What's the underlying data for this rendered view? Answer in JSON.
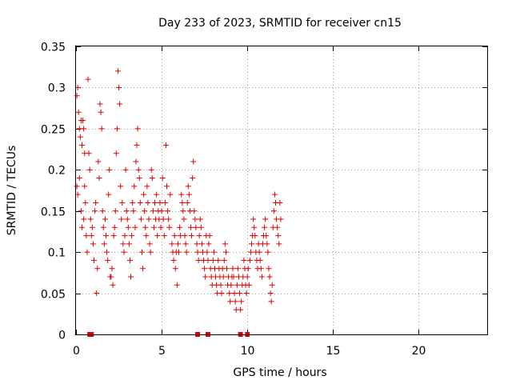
{
  "chart_data": {
    "type": "scatter",
    "title": "Day 233 of 2023, SRMTID for receiver cn15",
    "xlabel": "GPS time / hours",
    "ylabel": "SRMTID / TECUs",
    "xlim": [
      0,
      24
    ],
    "ylim": [
      0,
      0.35
    ],
    "xticks": [
      0,
      5,
      10,
      15,
      20
    ],
    "xtick_labels": [
      "0",
      "5",
      "10",
      "15",
      "20"
    ],
    "yticks": [
      0,
      0.05,
      0.1,
      0.15,
      0.2,
      0.25,
      0.3,
      0.35
    ],
    "ytick_labels": [
      "0",
      "0.05",
      "0.1",
      "0.15",
      "0.2",
      "0.25",
      "0.3",
      "0.35"
    ],
    "grid": true,
    "marker": "plus",
    "color": "#e00000",
    "series": [
      {
        "name": "SRMTID",
        "points": [
          [
            0.05,
            0.29
          ],
          [
            0.1,
            0.3
          ],
          [
            0.15,
            0.27
          ],
          [
            0.2,
            0.25
          ],
          [
            0.25,
            0.24
          ],
          [
            0.3,
            0.26
          ],
          [
            0.35,
            0.23
          ],
          [
            0.4,
            0.26
          ],
          [
            0.45,
            0.25
          ],
          [
            0.5,
            0.22
          ],
          [
            0.05,
            0.18
          ],
          [
            0.1,
            0.17
          ],
          [
            0.2,
            0.19
          ],
          [
            0.3,
            0.15
          ],
          [
            0.35,
            0.13
          ],
          [
            0.45,
            0.14
          ],
          [
            0.5,
            0.18
          ],
          [
            0.55,
            0.16
          ],
          [
            0.6,
            0.12
          ],
          [
            0.65,
            0.1
          ],
          [
            0.7,
            0.31
          ],
          [
            0.75,
            0.22
          ],
          [
            0.8,
            0.2
          ],
          [
            0.85,
            0.14
          ],
          [
            0.9,
            0.12
          ],
          [
            0.95,
            0.13
          ],
          [
            1.0,
            0.11
          ],
          [
            1.05,
            0.09
          ],
          [
            1.1,
            0.15
          ],
          [
            1.15,
            0.16
          ],
          [
            1.2,
            0.05
          ],
          [
            1.25,
            0.08
          ],
          [
            1.3,
            0.21
          ],
          [
            1.35,
            0.19
          ],
          [
            1.4,
            0.28
          ],
          [
            1.45,
            0.27
          ],
          [
            1.5,
            0.25
          ],
          [
            1.55,
            0.15
          ],
          [
            1.6,
            0.13
          ],
          [
            1.65,
            0.11
          ],
          [
            1.7,
            0.14
          ],
          [
            1.75,
            0.12
          ],
          [
            1.8,
            0.1
          ],
          [
            1.85,
            0.09
          ],
          [
            1.9,
            0.17
          ],
          [
            1.95,
            0.2
          ],
          [
            2.0,
            0.07
          ],
          [
            2.05,
            0.07
          ],
          [
            2.1,
            0.08
          ],
          [
            2.15,
            0.06
          ],
          [
            2.2,
            0.12
          ],
          [
            2.25,
            0.13
          ],
          [
            2.3,
            0.15
          ],
          [
            2.35,
            0.22
          ],
          [
            2.4,
            0.25
          ],
          [
            2.45,
            0.32
          ],
          [
            2.5,
            0.3
          ],
          [
            2.55,
            0.28
          ],
          [
            2.6,
            0.18
          ],
          [
            2.65,
            0.14
          ],
          [
            2.7,
            0.16
          ],
          [
            2.75,
            0.11
          ],
          [
            2.8,
            0.1
          ],
          [
            2.85,
            0.12
          ],
          [
            2.9,
            0.2
          ],
          [
            2.95,
            0.15
          ],
          [
            3.0,
            0.14
          ],
          [
            3.05,
            0.13
          ],
          [
            3.1,
            0.11
          ],
          [
            3.15,
            0.09
          ],
          [
            3.2,
            0.07
          ],
          [
            3.25,
            0.12
          ],
          [
            3.3,
            0.16
          ],
          [
            3.35,
            0.15
          ],
          [
            3.4,
            0.18
          ],
          [
            3.45,
            0.13
          ],
          [
            3.5,
            0.21
          ],
          [
            3.55,
            0.23
          ],
          [
            3.6,
            0.25
          ],
          [
            3.65,
            0.2
          ],
          [
            3.7,
            0.19
          ],
          [
            3.75,
            0.16
          ],
          [
            3.8,
            0.14
          ],
          [
            3.85,
            0.1
          ],
          [
            3.9,
            0.08
          ],
          [
            3.95,
            0.17
          ],
          [
            4.0,
            0.15
          ],
          [
            4.05,
            0.13
          ],
          [
            4.1,
            0.12
          ],
          [
            4.15,
            0.18
          ],
          [
            4.2,
            0.16
          ],
          [
            4.25,
            0.14
          ],
          [
            4.3,
            0.11
          ],
          [
            4.35,
            0.1
          ],
          [
            4.4,
            0.2
          ],
          [
            4.45,
            0.19
          ],
          [
            4.5,
            0.15
          ],
          [
            4.55,
            0.13
          ],
          [
            4.6,
            0.16
          ],
          [
            4.65,
            0.14
          ],
          [
            4.7,
            0.17
          ],
          [
            4.75,
            0.12
          ],
          [
            4.8,
            0.15
          ],
          [
            4.85,
            0.14
          ],
          [
            4.9,
            0.16
          ],
          [
            4.95,
            0.13
          ],
          [
            5.0,
            0.15
          ],
          [
            5.05,
            0.19
          ],
          [
            5.1,
            0.14
          ],
          [
            5.15,
            0.12
          ],
          [
            5.2,
            0.16
          ],
          [
            5.25,
            0.23
          ],
          [
            5.3,
            0.18
          ],
          [
            5.35,
            0.15
          ],
          [
            5.4,
            0.14
          ],
          [
            5.45,
            0.13
          ],
          [
            5.5,
            0.17
          ],
          [
            5.6,
            0.11
          ],
          [
            5.65,
            0.1
          ],
          [
            5.7,
            0.09
          ],
          [
            5.75,
            0.12
          ],
          [
            5.8,
            0.08
          ],
          [
            5.85,
            0.1
          ],
          [
            5.9,
            0.06
          ],
          [
            5.95,
            0.11
          ],
          [
            6.0,
            0.1
          ],
          [
            6.05,
            0.13
          ],
          [
            6.1,
            0.12
          ],
          [
            6.15,
            0.17
          ],
          [
            6.2,
            0.16
          ],
          [
            6.25,
            0.15
          ],
          [
            6.3,
            0.14
          ],
          [
            6.35,
            0.12
          ],
          [
            6.4,
            0.11
          ],
          [
            6.45,
            0.1
          ],
          [
            6.5,
            0.16
          ],
          [
            6.55,
            0.18
          ],
          [
            6.6,
            0.17
          ],
          [
            6.65,
            0.15
          ],
          [
            6.7,
            0.13
          ],
          [
            6.75,
            0.12
          ],
          [
            6.8,
            0.19
          ],
          [
            6.85,
            0.21
          ],
          [
            6.9,
            0.15
          ],
          [
            6.95,
            0.14
          ],
          [
            7.0,
            0.13
          ],
          [
            7.05,
            0.11
          ],
          [
            7.1,
            0.1
          ],
          [
            7.15,
            0.09
          ],
          [
            7.2,
            0.12
          ],
          [
            7.25,
            0.14
          ],
          [
            7.3,
            0.13
          ],
          [
            7.35,
            0.11
          ],
          [
            7.4,
            0.1
          ],
          [
            7.45,
            0.09
          ],
          [
            7.5,
            0.08
          ],
          [
            7.55,
            0.07
          ],
          [
            7.6,
            0.12
          ],
          [
            7.65,
            0.1
          ],
          [
            7.7,
            0.09
          ],
          [
            7.75,
            0.11
          ],
          [
            7.8,
            0.12
          ],
          [
            7.85,
            0.08
          ],
          [
            7.9,
            0.07
          ],
          [
            7.95,
            0.06
          ],
          [
            8.0,
            0.09
          ],
          [
            8.05,
            0.1
          ],
          [
            8.1,
            0.08
          ],
          [
            8.15,
            0.07
          ],
          [
            8.2,
            0.06
          ],
          [
            8.25,
            0.05
          ],
          [
            8.3,
            0.09
          ],
          [
            8.35,
            0.08
          ],
          [
            8.4,
            0.07
          ],
          [
            8.45,
            0.06
          ],
          [
            8.5,
            0.05
          ],
          [
            8.55,
            0.08
          ],
          [
            8.6,
            0.07
          ],
          [
            8.65,
            0.09
          ],
          [
            8.7,
            0.11
          ],
          [
            8.75,
            0.1
          ],
          [
            8.8,
            0.08
          ],
          [
            8.85,
            0.06
          ],
          [
            8.9,
            0.07
          ],
          [
            8.95,
            0.05
          ],
          [
            9.0,
            0.04
          ],
          [
            9.05,
            0.06
          ],
          [
            9.1,
            0.07
          ],
          [
            9.15,
            0.08
          ],
          [
            9.2,
            0.07
          ],
          [
            9.25,
            0.05
          ],
          [
            9.3,
            0.04
          ],
          [
            9.35,
            0.03
          ],
          [
            9.4,
            0.06
          ],
          [
            9.45,
            0.08
          ],
          [
            9.5,
            0.07
          ],
          [
            9.55,
            0.05
          ],
          [
            9.6,
            0.03
          ],
          [
            9.65,
            0.04
          ],
          [
            9.7,
            0.06
          ],
          [
            9.75,
            0.07
          ],
          [
            9.8,
            0.09
          ],
          [
            9.85,
            0.08
          ],
          [
            9.9,
            0.06
          ],
          [
            9.95,
            0.05
          ],
          [
            10.0,
            0.07
          ],
          [
            10.05,
            0.08
          ],
          [
            10.1,
            0.06
          ],
          [
            10.15,
            0.09
          ],
          [
            10.2,
            0.1
          ],
          [
            10.25,
            0.11
          ],
          [
            10.3,
            0.12
          ],
          [
            10.35,
            0.14
          ],
          [
            10.4,
            0.13
          ],
          [
            10.45,
            0.12
          ],
          [
            10.5,
            0.1
          ],
          [
            10.55,
            0.09
          ],
          [
            10.6,
            0.08
          ],
          [
            10.65,
            0.11
          ],
          [
            10.7,
            0.1
          ],
          [
            10.75,
            0.09
          ],
          [
            10.8,
            0.08
          ],
          [
            10.85,
            0.07
          ],
          [
            10.9,
            0.11
          ],
          [
            10.95,
            0.12
          ],
          [
            11.0,
            0.13
          ],
          [
            11.05,
            0.14
          ],
          [
            11.1,
            0.12
          ],
          [
            11.15,
            0.11
          ],
          [
            11.2,
            0.1
          ],
          [
            11.25,
            0.08
          ],
          [
            11.3,
            0.07
          ],
          [
            11.35,
            0.05
          ],
          [
            11.4,
            0.04
          ],
          [
            11.45,
            0.06
          ],
          [
            11.5,
            0.13
          ],
          [
            11.55,
            0.15
          ],
          [
            11.6,
            0.17
          ],
          [
            11.65,
            0.16
          ],
          [
            11.7,
            0.14
          ],
          [
            11.75,
            0.13
          ],
          [
            11.8,
            0.12
          ],
          [
            11.85,
            0.11
          ],
          [
            11.9,
            0.16
          ],
          [
            11.95,
            0.14
          ]
        ]
      }
    ],
    "rejected_marks_x": [
      0.8,
      0.9,
      7.1,
      7.7,
      9.6,
      10.0
    ],
    "rejected_marks_y": 0
  }
}
